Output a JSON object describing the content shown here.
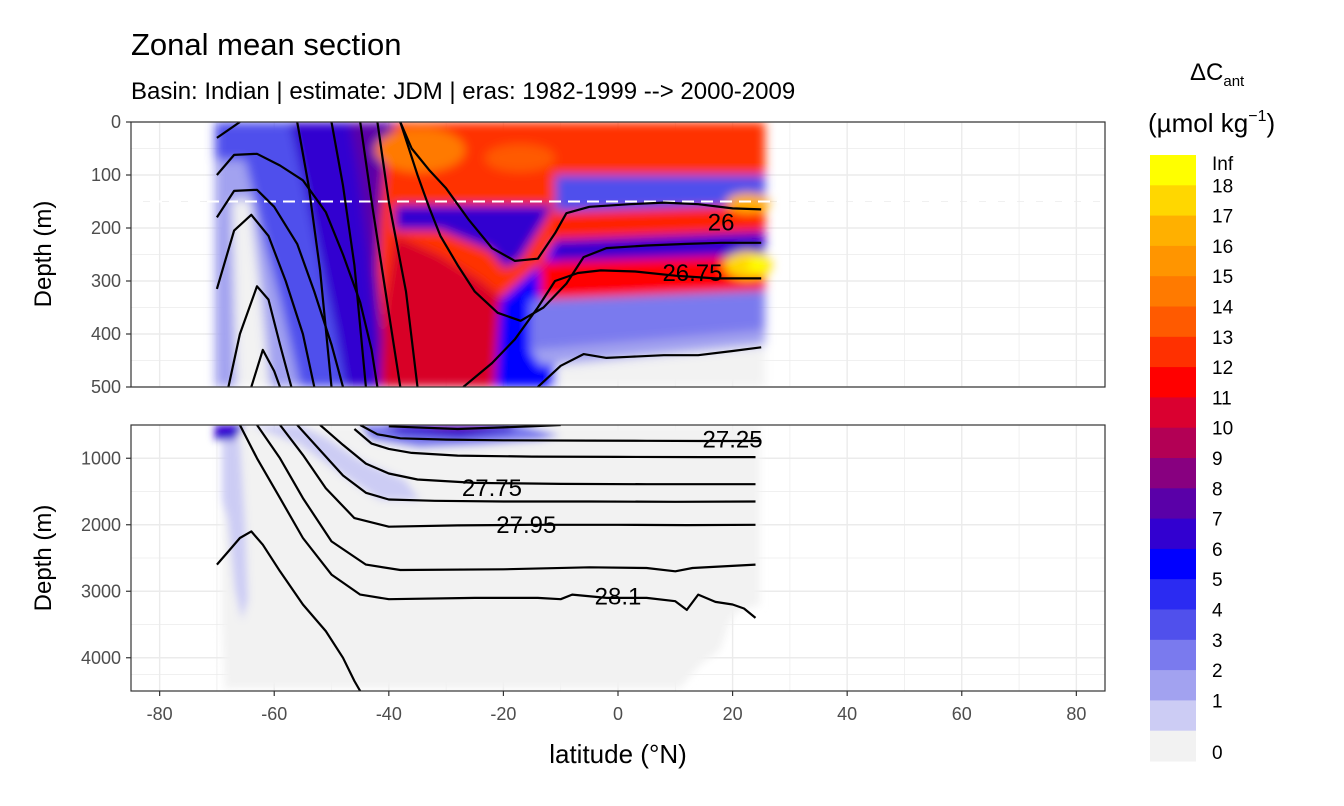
{
  "chart_data": {
    "type": "contour",
    "title": "Zonal mean section",
    "subtitle": "Basin: Indian | estimate: JDM  | eras: 1982-1999 --> 2000-2009",
    "xlabel": "latitude (°N)",
    "xlim": [
      -85,
      85
    ],
    "xticks": [
      -80,
      -60,
      -40,
      -20,
      0,
      20,
      40,
      60,
      80
    ],
    "data_lat_range": [
      -70,
      25
    ],
    "panels": [
      {
        "name": "upper",
        "ylabel": "Depth (m)",
        "ylim": [
          500,
          0
        ],
        "yticks": [
          0,
          100,
          200,
          300,
          400,
          500
        ],
        "reference_depth": 150,
        "isopycnal_labels": [
          {
            "text": "26",
            "lat": 18,
            "depth": 190
          },
          {
            "text": "26.75",
            "lat": 13,
            "depth": 285
          }
        ],
        "isopycnals": [
          [
            [
              -70,
              30
            ],
            [
              -66,
              0
            ]
          ],
          [
            [
              -70,
              100
            ],
            [
              -67,
              62
            ],
            [
              -63,
              60
            ],
            [
              -59,
              82
            ],
            [
              -55,
              110
            ],
            [
              -51,
              170
            ],
            [
              -48,
              250
            ],
            [
              -45,
              340
            ],
            [
              -43,
              430
            ],
            [
              -42,
              500
            ]
          ],
          [
            [
              -70,
              180
            ],
            [
              -67,
              130
            ],
            [
              -63,
              128
            ],
            [
              -60,
              160
            ],
            [
              -56,
              230
            ],
            [
              -53,
              320
            ],
            [
              -50,
              420
            ],
            [
              -48,
              500
            ]
          ],
          [
            [
              -70,
              315
            ],
            [
              -67,
              205
            ],
            [
              -64,
              175
            ],
            [
              -61,
              215
            ],
            [
              -58,
              300
            ],
            [
              -55,
              400
            ],
            [
              -53,
              500
            ]
          ],
          [
            [
              -68,
              500
            ],
            [
              -66,
              400
            ],
            [
              -63,
              310
            ],
            [
              -61,
              335
            ],
            [
              -59,
              420
            ],
            [
              -57,
              500
            ]
          ],
          [
            [
              -64,
              500
            ],
            [
              -62,
              430
            ],
            [
              -60,
              470
            ],
            [
              -59,
              500
            ]
          ],
          [
            [
              -56,
              0
            ],
            [
              -54,
              120
            ],
            [
              -52,
              280
            ],
            [
              -50,
              500
            ]
          ],
          [
            [
              -50,
              0
            ],
            [
              -48,
              120
            ],
            [
              -46,
              270
            ],
            [
              -44,
              500
            ]
          ],
          [
            [
              -45,
              0
            ],
            [
              -43,
              150
            ],
            [
              -40,
              360
            ],
            [
              -38,
              500
            ]
          ],
          [
            [
              -42,
              0
            ],
            [
              -40,
              150
            ],
            [
              -37,
              320
            ],
            [
              -35,
              500
            ]
          ],
          [
            [
              -38,
              0
            ],
            [
              -36,
              50
            ],
            [
              -33,
              90
            ],
            [
              -30,
              125
            ],
            [
              -26,
              185
            ],
            [
              -22,
              238
            ],
            [
              -18,
              262
            ],
            [
              -14,
              258
            ],
            [
              -11,
              210
            ],
            [
              -9,
              172
            ],
            [
              -5,
              160
            ],
            [
              2,
              155
            ],
            [
              8,
              152
            ],
            [
              14,
              155
            ],
            [
              20,
              163
            ],
            [
              25,
              165
            ]
          ],
          [
            [
              -38,
              0
            ],
            [
              -35,
              100
            ],
            [
              -33,
              160
            ],
            [
              -31,
              215
            ],
            [
              -28,
              270
            ],
            [
              -25,
              320
            ],
            [
              -21,
              360
            ],
            [
              -17,
              375
            ],
            [
              -13,
              350
            ],
            [
              -9,
              305
            ],
            [
              -6,
              255
            ],
            [
              -2,
              238
            ],
            [
              5,
              233
            ],
            [
              12,
              230
            ],
            [
              18,
              228
            ],
            [
              25,
              228
            ]
          ],
          [
            [
              -27,
              500
            ],
            [
              -22,
              455
            ],
            [
              -18,
              410
            ],
            [
              -14,
              350
            ],
            [
              -11,
              300
            ],
            [
              -7,
              285
            ],
            [
              -3,
              280
            ],
            [
              3,
              282
            ],
            [
              10,
              290
            ],
            [
              17,
              295
            ],
            [
              25,
              295
            ]
          ],
          [
            [
              -14,
              500
            ],
            [
              -10,
              460
            ],
            [
              -6,
              438
            ],
            [
              -2,
              445
            ],
            [
              2,
              443
            ],
            [
              8,
              440
            ],
            [
              14,
              440
            ],
            [
              20,
              432
            ],
            [
              25,
              425
            ]
          ]
        ]
      },
      {
        "name": "lower",
        "ylabel": "Depth (m)",
        "ylim": [
          4500,
          500
        ],
        "yticks": [
          1000,
          2000,
          3000,
          4000
        ],
        "isopycnal_labels": [
          {
            "text": "27.25",
            "lat": 20,
            "depth": 720
          },
          {
            "text": "27.75",
            "lat": -22,
            "depth": 1450
          },
          {
            "text": "27.95",
            "lat": -16,
            "depth": 2000
          },
          {
            "text": "28.1",
            "lat": 0,
            "depth": 3080
          }
        ],
        "isopycnals": [
          [
            [
              -40,
              520
            ],
            [
              -28,
              560
            ],
            [
              -15,
              520
            ],
            [
              -10,
              500
            ]
          ],
          [
            [
              -45,
              500
            ],
            [
              -42,
              640
            ],
            [
              -38,
              700
            ],
            [
              -30,
              720
            ],
            [
              -20,
              730
            ],
            [
              -5,
              735
            ],
            [
              5,
              738
            ],
            [
              15,
              740
            ],
            [
              25,
              740
            ]
          ],
          [
            [
              -46,
              560
            ],
            [
              -43,
              780
            ],
            [
              -40,
              860
            ],
            [
              -36,
              920
            ],
            [
              -28,
              960
            ],
            [
              -15,
              975
            ],
            [
              0,
              980
            ],
            [
              15,
              982
            ],
            [
              24,
              982
            ]
          ],
          [
            [
              -52,
              500
            ],
            [
              -48,
              800
            ],
            [
              -44,
              1080
            ],
            [
              -40,
              1230
            ],
            [
              -35,
              1320
            ],
            [
              -25,
              1370
            ],
            [
              -10,
              1385
            ],
            [
              5,
              1390
            ],
            [
              24,
              1390
            ]
          ],
          [
            [
              -56,
              500
            ],
            [
              -52,
              880
            ],
            [
              -48,
              1260
            ],
            [
              -44,
              1520
            ],
            [
              -40,
              1620
            ],
            [
              -32,
              1640
            ],
            [
              -20,
              1650
            ],
            [
              -5,
              1650
            ],
            [
              10,
              1655
            ],
            [
              24,
              1650
            ]
          ],
          [
            [
              -59,
              500
            ],
            [
              -55,
              950
            ],
            [
              -51,
              1450
            ],
            [
              -46,
              1900
            ],
            [
              -40,
              2030
            ],
            [
              -28,
              2010
            ],
            [
              -15,
              2000
            ],
            [
              0,
              2000
            ],
            [
              12,
              2005
            ],
            [
              24,
              2000
            ]
          ],
          [
            [
              -63,
              500
            ],
            [
              -59,
              1000
            ],
            [
              -55,
              1600
            ],
            [
              -50,
              2250
            ],
            [
              -44,
              2600
            ],
            [
              -38,
              2680
            ],
            [
              -20,
              2670
            ],
            [
              -5,
              2640
            ],
            [
              5,
              2650
            ],
            [
              10,
              2700
            ],
            [
              13,
              2650
            ],
            [
              24,
              2600
            ]
          ],
          [
            [
              -66,
              500
            ],
            [
              -63,
              1000
            ],
            [
              -59,
              1600
            ],
            [
              -55,
              2200
            ],
            [
              -50,
              2750
            ],
            [
              -45,
              3050
            ],
            [
              -40,
              3120
            ],
            [
              -25,
              3100
            ],
            [
              -14,
              3100
            ],
            [
              -10,
              3120
            ],
            [
              -8,
              3050
            ],
            [
              -2,
              3100
            ],
            [
              5,
              3100
            ],
            [
              10,
              3150
            ],
            [
              12,
              3280
            ],
            [
              14,
              3050
            ],
            [
              17,
              3160
            ],
            [
              20,
              3200
            ],
            [
              22,
              3260
            ],
            [
              24,
              3400
            ]
          ],
          [
            [
              -70,
              2600
            ],
            [
              -68,
              2400
            ],
            [
              -66,
              2200
            ],
            [
              -64,
              2100
            ],
            [
              -62,
              2300
            ],
            [
              -59,
              2700
            ],
            [
              -55,
              3200
            ],
            [
              -51,
              3600
            ],
            [
              -48,
              4000
            ],
            [
              -46,
              4350
            ],
            [
              -45,
              4500
            ]
          ]
        ]
      }
    ],
    "legend": {
      "title": "ΔCant",
      "title_main": "ΔC",
      "title_sub": "ant",
      "unit": "(µmol kg⁻¹)",
      "unit_main": "(µmol kg",
      "unit_sup": "−1",
      "unit_close": ")",
      "labels": [
        "Inf",
        "18",
        "17",
        "16",
        "15",
        "14",
        "13",
        "12",
        "11",
        "10",
        "9",
        "8",
        "7",
        "6",
        "5",
        "4",
        "3",
        "2",
        "1",
        "0"
      ],
      "colors": [
        "#FFFF00",
        "#FFD700",
        "#FFB000",
        "#FF9500",
        "#FF7A00",
        "#FF5A00",
        "#FF3000",
        "#FF0000",
        "#DA0030",
        "#B30055",
        "#880080",
        "#5A00A8",
        "#3200D0",
        "#0000FF",
        "#2B2BF2",
        "#5050EC",
        "#7A7AEE",
        "#A2A2F0",
        "#CCCCF4",
        "#F2F2F2"
      ]
    }
  }
}
